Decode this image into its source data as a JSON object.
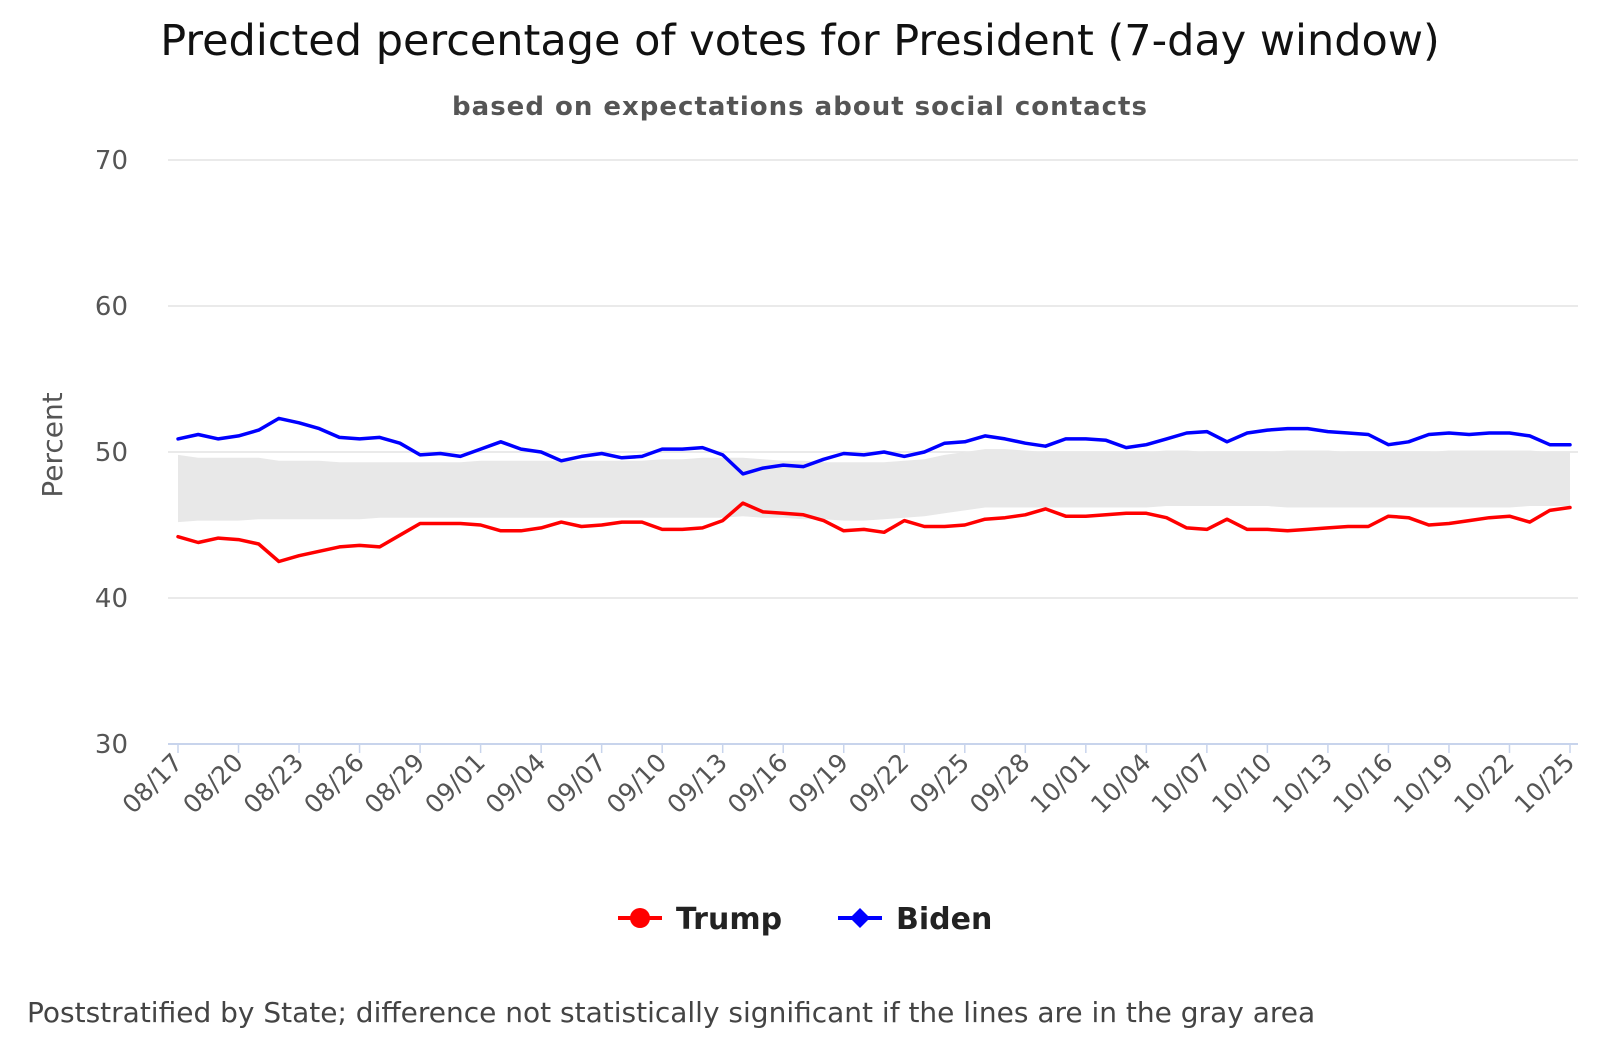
{
  "chart_data": {
    "type": "line",
    "title": "Predicted percentage of votes for President (7-day window)",
    "subtitle": "based on expectations about social contacts",
    "ylabel": "Percent",
    "xlabel": "",
    "ylim": [
      30,
      70
    ],
    "yticks": [
      30,
      40,
      50,
      60,
      70
    ],
    "grid": true,
    "legend_position": "bottom",
    "x_tick_labels": [
      "08/17",
      "08/20",
      "08/23",
      "08/26",
      "08/29",
      "09/01",
      "09/04",
      "09/07",
      "09/10",
      "09/13",
      "09/16",
      "09/19",
      "09/22",
      "09/25",
      "09/28",
      "10/01",
      "10/04",
      "10/07",
      "10/10",
      "10/13",
      "10/16",
      "10/19",
      "10/22",
      "10/25"
    ],
    "x": [
      "08/17",
      "08/18",
      "08/19",
      "08/20",
      "08/21",
      "08/22",
      "08/23",
      "08/24",
      "08/25",
      "08/26",
      "08/27",
      "08/28",
      "08/29",
      "08/30",
      "08/31",
      "09/01",
      "09/02",
      "09/03",
      "09/04",
      "09/05",
      "09/06",
      "09/07",
      "09/08",
      "09/09",
      "09/10",
      "09/11",
      "09/12",
      "09/13",
      "09/14",
      "09/15",
      "09/16",
      "09/17",
      "09/18",
      "09/19",
      "09/20",
      "09/21",
      "09/22",
      "09/23",
      "09/24",
      "09/25",
      "09/26",
      "09/27",
      "09/28",
      "09/29",
      "09/30",
      "10/01",
      "10/02",
      "10/03",
      "10/04",
      "10/05",
      "10/06",
      "10/07",
      "10/08",
      "10/09",
      "10/10",
      "10/11",
      "10/12",
      "10/13",
      "10/14",
      "10/15",
      "10/16",
      "10/17",
      "10/18",
      "10/19",
      "10/20",
      "10/21",
      "10/22",
      "10/23",
      "10/24",
      "10/25"
    ],
    "series": [
      {
        "name": "Trump",
        "color": "#ff0000",
        "marker": "circle",
        "values": [
          44.2,
          43.8,
          44.1,
          44.0,
          43.7,
          42.5,
          42.9,
          43.2,
          43.5,
          43.6,
          43.5,
          44.3,
          45.1,
          45.1,
          45.1,
          45.0,
          44.6,
          44.6,
          44.8,
          45.2,
          44.9,
          45.0,
          45.2,
          45.2,
          44.7,
          44.7,
          44.8,
          45.3,
          46.5,
          45.9,
          45.8,
          45.7,
          45.3,
          44.6,
          44.7,
          44.5,
          45.3,
          44.9,
          44.9,
          45.0,
          45.4,
          45.5,
          45.7,
          46.1,
          45.6,
          45.6,
          45.7,
          45.8,
          45.8,
          45.5,
          44.8,
          44.7,
          45.4,
          44.7,
          44.7,
          44.6,
          44.7,
          44.8,
          44.9,
          44.9,
          45.6,
          45.5,
          45.0,
          45.1,
          45.3,
          45.5,
          45.6,
          45.2,
          46.0,
          46.2
        ]
      },
      {
        "name": "Biden",
        "color": "#0000ff",
        "marker": "diamond",
        "values": [
          50.9,
          51.2,
          50.9,
          51.1,
          51.5,
          52.3,
          52.0,
          51.6,
          51.0,
          50.9,
          51.0,
          50.6,
          49.8,
          49.9,
          49.7,
          50.2,
          50.7,
          50.2,
          50.0,
          49.4,
          49.7,
          49.9,
          49.6,
          49.7,
          50.2,
          50.2,
          50.3,
          49.8,
          48.5,
          48.9,
          49.1,
          49.0,
          49.5,
          49.9,
          49.8,
          50.0,
          49.7,
          50.0,
          50.6,
          50.7,
          51.1,
          50.9,
          50.6,
          50.4,
          50.9,
          50.9,
          50.8,
          50.3,
          50.5,
          50.9,
          51.3,
          51.4,
          50.7,
          51.3,
          51.5,
          51.6,
          51.6,
          51.4,
          51.3,
          51.2,
          50.5,
          50.7,
          51.2,
          51.3,
          51.2,
          51.3,
          51.3,
          51.1,
          50.5,
          50.5
        ]
      }
    ],
    "band": {
      "color": "#e8e8e8",
      "upper": [
        49.8,
        49.6,
        49.6,
        49.6,
        49.6,
        49.4,
        49.4,
        49.4,
        49.3,
        49.3,
        49.3,
        49.3,
        49.3,
        49.3,
        49.3,
        49.4,
        49.4,
        49.4,
        49.4,
        49.4,
        49.4,
        49.4,
        49.4,
        49.4,
        49.5,
        49.5,
        49.6,
        49.6,
        49.6,
        49.5,
        49.4,
        49.4,
        49.3,
        49.3,
        49.3,
        49.3,
        49.4,
        49.5,
        49.8,
        50.0,
        50.2,
        50.2,
        50.1,
        50.0,
        50.0,
        50.0,
        50.0,
        50.0,
        50.0,
        50.1,
        50.1,
        50.0,
        50.0,
        50.0,
        50.0,
        50.1,
        50.1,
        50.1,
        50.0,
        50.0,
        50.0,
        50.0,
        50.0,
        50.1,
        50.1,
        50.1,
        50.1,
        50.1,
        50.0,
        50.0
      ],
      "lower": [
        45.2,
        45.3,
        45.3,
        45.3,
        45.4,
        45.4,
        45.4,
        45.4,
        45.4,
        45.4,
        45.5,
        45.5,
        45.5,
        45.5,
        45.5,
        45.5,
        45.5,
        45.5,
        45.5,
        45.5,
        45.5,
        45.5,
        45.5,
        45.5,
        45.5,
        45.5,
        45.5,
        45.5,
        45.6,
        45.5,
        45.5,
        45.4,
        45.4,
        45.3,
        45.3,
        45.4,
        45.5,
        45.6,
        45.8,
        46.0,
        46.2,
        46.2,
        46.2,
        46.2,
        46.2,
        46.2,
        46.2,
        46.2,
        46.2,
        46.3,
        46.3,
        46.3,
        46.3,
        46.3,
        46.3,
        46.2,
        46.2,
        46.2,
        46.2,
        46.2,
        46.2,
        46.2,
        46.2,
        46.2,
        46.2,
        46.2,
        46.2,
        46.3,
        46.3,
        46.3
      ]
    },
    "legend": [
      "Trump",
      "Biden"
    ],
    "footnote": "Poststratified by State; difference not statistically significant if the lines are in the gray area"
  }
}
